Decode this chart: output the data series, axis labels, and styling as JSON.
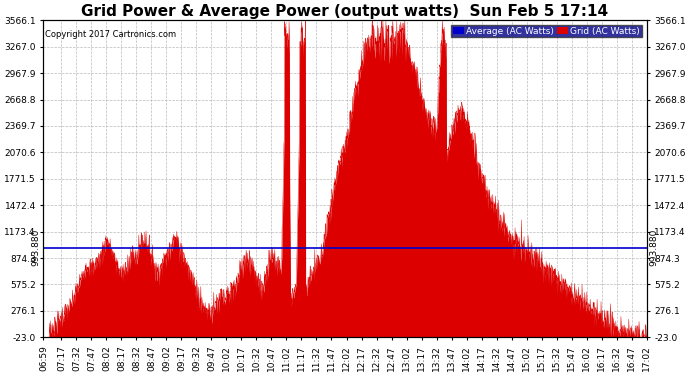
{
  "title": "Grid Power & Average Power (output watts)  Sun Feb 5 17:14",
  "copyright": "Copyright 2017 Cartronics.com",
  "avg_label": "Average (AC Watts)",
  "grid_label": "Grid (AC Watts)",
  "avg_value": 993.88,
  "ylim": [
    -23.0,
    3566.1
  ],
  "yticks": [
    3566.1,
    3267.0,
    2967.9,
    2668.8,
    2369.7,
    2070.6,
    1771.5,
    1472.4,
    1173.4,
    874.3,
    575.2,
    276.1,
    -23.0
  ],
  "background_color": "#ffffff",
  "fill_color": "#dd0000",
  "line_color": "#dd0000",
  "avg_line_color": "#0000cc",
  "grid_color": "#bbbbbb",
  "title_fontsize": 11,
  "tick_fontsize": 6.5,
  "legend_bg": "#000088"
}
